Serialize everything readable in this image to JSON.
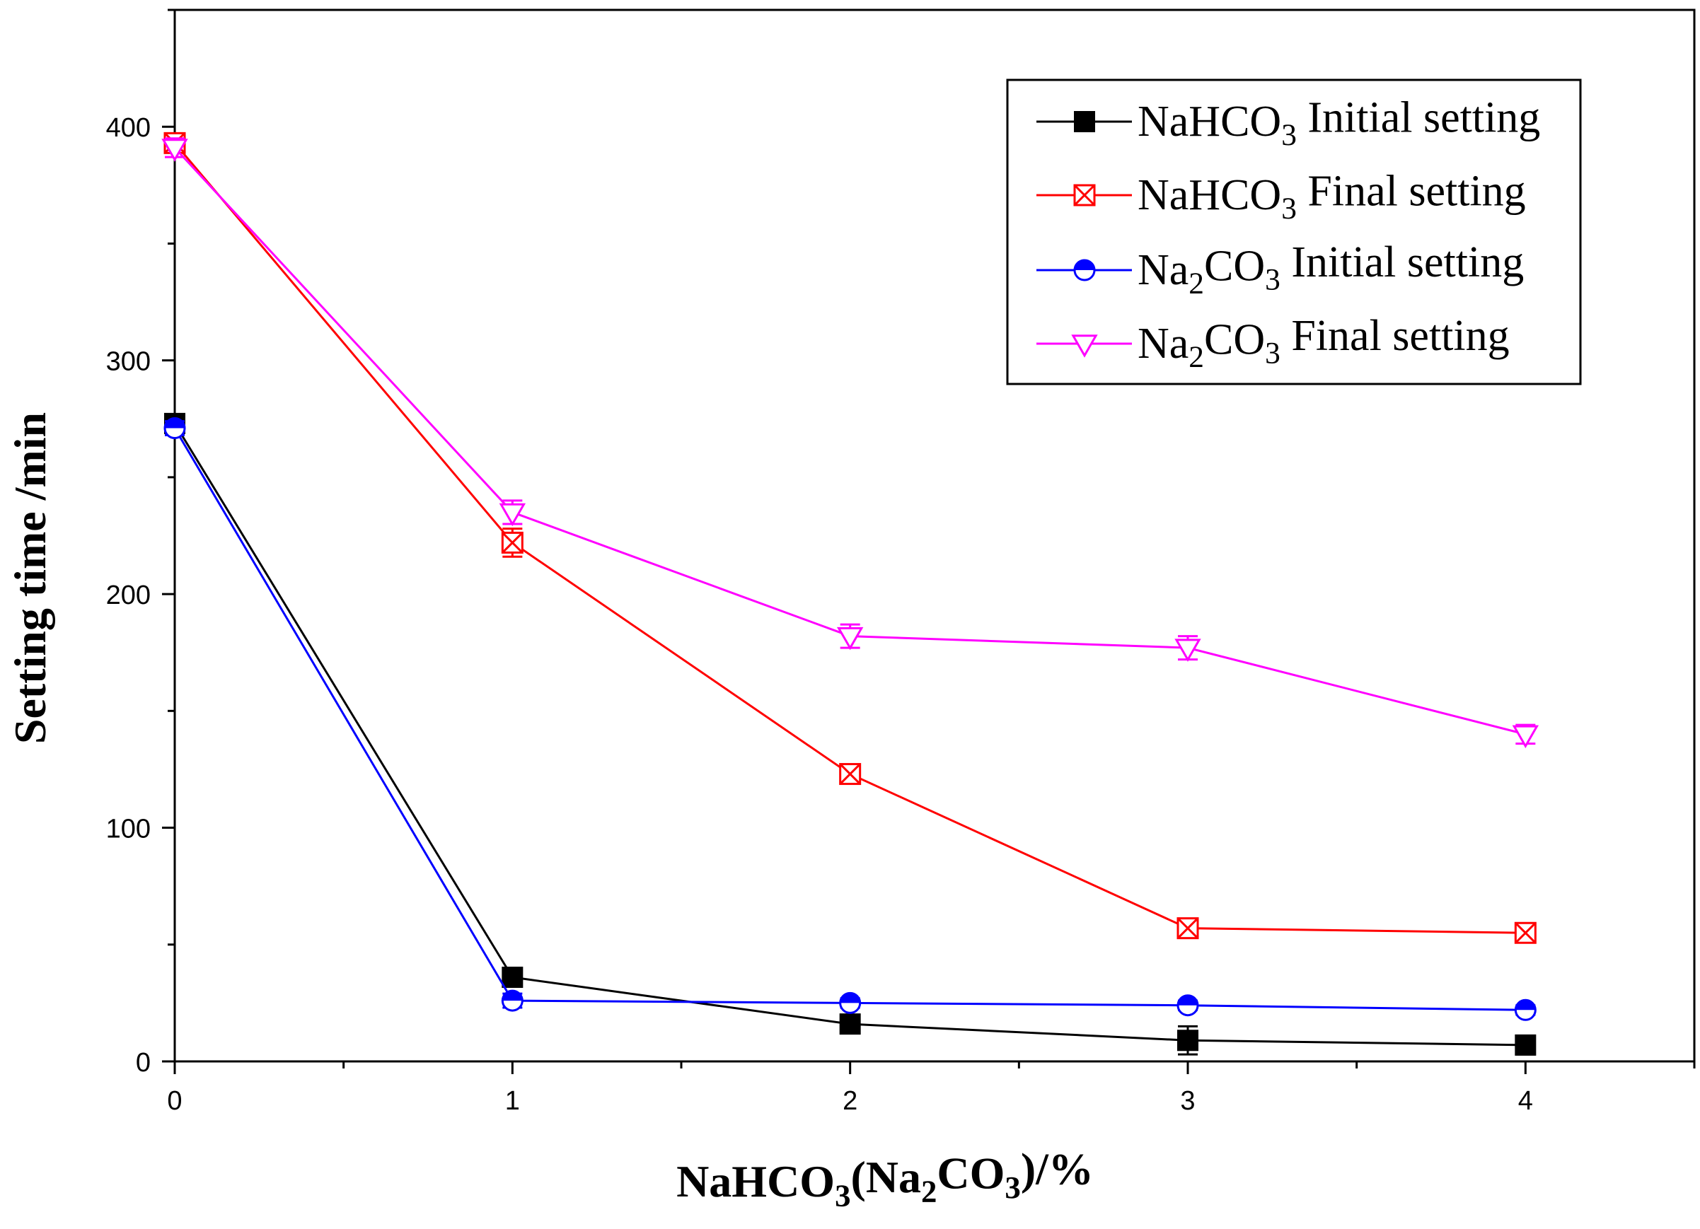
{
  "chart_data": {
    "type": "line",
    "title": "",
    "xlabel": {
      "parts": [
        {
          "t": "NaHCO",
          "sub": false
        },
        {
          "t": "3",
          "sub": true
        },
        {
          "t": "(Na",
          "sub": false
        },
        {
          "t": "2",
          "sub": true
        },
        {
          "t": "CO",
          "sub": false
        },
        {
          "t": "3",
          "sub": true
        },
        {
          "t": ")/%",
          "sub": false
        }
      ]
    },
    "ylabel": "Setting time /min",
    "xlim": [
      0,
      4.5
    ],
    "ylim": [
      0,
      450
    ],
    "x_ticks": [
      "0",
      "1",
      "2",
      "3",
      "4"
    ],
    "x_tick_values": [
      0,
      1,
      2,
      3,
      4
    ],
    "x_minor_ticks": [
      0.5,
      1.5,
      2.5,
      3.5,
      4.5
    ],
    "y_ticks": [
      "0",
      "100",
      "200",
      "300",
      "400"
    ],
    "y_tick_values": [
      0,
      100,
      200,
      300,
      400
    ],
    "y_minor_ticks": [
      50,
      150,
      250,
      350,
      450
    ],
    "grid": false,
    "legend_position": "top-right",
    "x": [
      0,
      1,
      2,
      3,
      4
    ],
    "series": [
      {
        "name": "NaHCO3 Initial setting",
        "legend_parts": [
          {
            "t": "NaHCO",
            "sub": false
          },
          {
            "t": "3",
            "sub": true
          },
          {
            "t": "  Initial setting",
            "sub": false
          }
        ],
        "color": "#000000",
        "marker": "filled-square",
        "values": [
          273,
          36,
          16,
          9,
          7
        ],
        "errors": [
          3,
          3,
          3,
          6,
          4
        ]
      },
      {
        "name": "NaHCO3 Final setting",
        "legend_parts": [
          {
            "t": "NaHCO",
            "sub": false
          },
          {
            "t": "3",
            "sub": true
          },
          {
            "t": " Final setting",
            "sub": false
          }
        ],
        "color": "#ff0000",
        "marker": "crossed-square",
        "values": [
          393,
          222,
          123,
          57,
          55
        ],
        "errors": [
          4,
          6,
          3,
          2,
          3
        ]
      },
      {
        "name": "Na2CO3 Initial setting",
        "legend_parts": [
          {
            "t": "Na",
            "sub": false
          },
          {
            "t": "2",
            "sub": true
          },
          {
            "t": "CO",
            "sub": false
          },
          {
            "t": "3",
            "sub": true
          },
          {
            "t": "   Initial setting",
            "sub": false
          }
        ],
        "color": "#0000ff",
        "marker": "half-filled-circle",
        "values": [
          271,
          26,
          25,
          24,
          22
        ],
        "errors": [
          3,
          3,
          2,
          2,
          2
        ]
      },
      {
        "name": "Na2CO3 Final setting",
        "legend_parts": [
          {
            "t": "Na",
            "sub": false
          },
          {
            "t": "2",
            "sub": true
          },
          {
            "t": "CO",
            "sub": false
          },
          {
            "t": "3",
            "sub": true
          },
          {
            "t": "  Final setting",
            "sub": false
          }
        ],
        "color": "#ff00ff",
        "marker": "open-triangle-down",
        "values": [
          391,
          235,
          182,
          177,
          140
        ],
        "errors": [
          4,
          5,
          5,
          5,
          4
        ]
      }
    ]
  }
}
